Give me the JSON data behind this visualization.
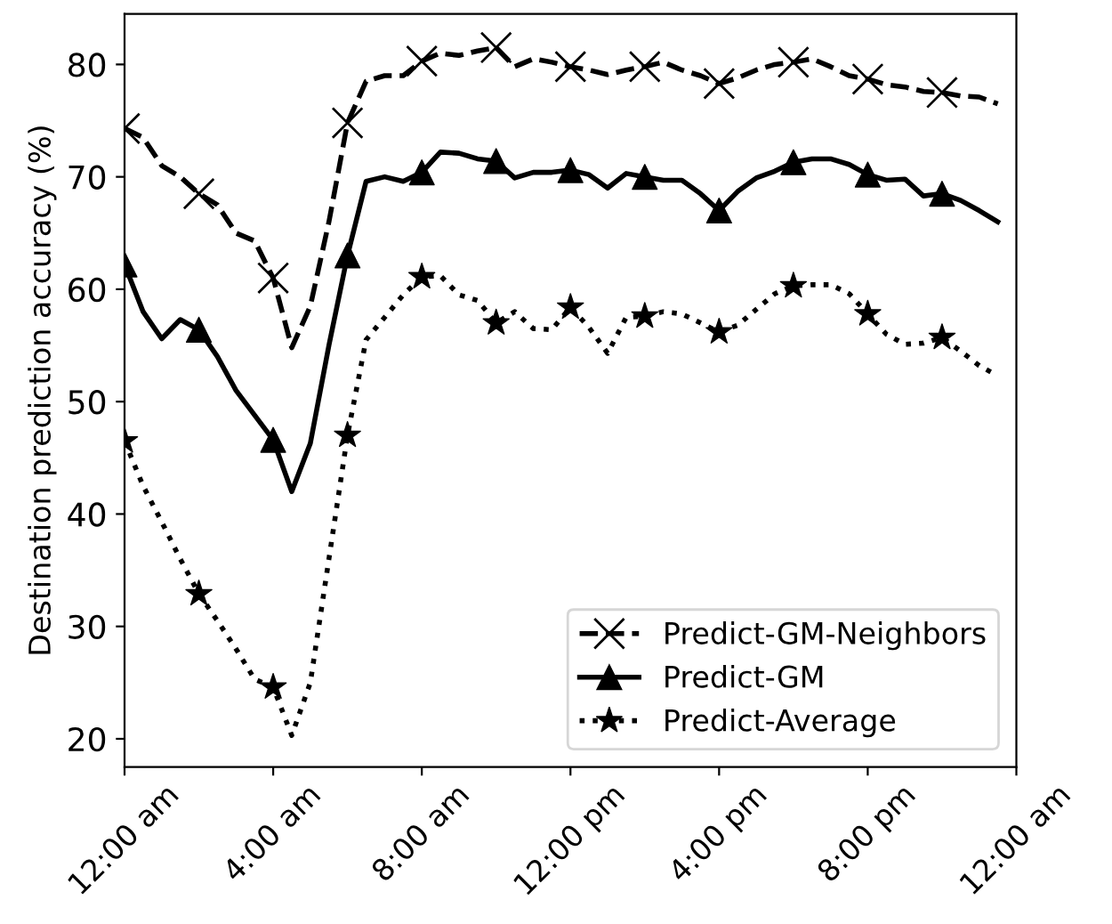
{
  "chart_data": {
    "type": "line",
    "ylabel": "Destination prediction accuracy (%)",
    "x": [
      0,
      0.5,
      1,
      1.5,
      2,
      2.5,
      3,
      3.5,
      4,
      4.5,
      5,
      5.5,
      6,
      6.5,
      7,
      7.5,
      8,
      8.5,
      9,
      9.5,
      10,
      10.5,
      11,
      11.5,
      12,
      12.5,
      13,
      13.5,
      14,
      14.5,
      15,
      15.5,
      16,
      16.5,
      17,
      17.5,
      18,
      18.5,
      19,
      19.5,
      20,
      20.5,
      21,
      21.5,
      22,
      22.5,
      23,
      23.5
    ],
    "xlim": [
      0,
      24
    ],
    "xticks": [
      {
        "value": 0,
        "label": "12:00 am"
      },
      {
        "value": 4,
        "label": "4:00 am"
      },
      {
        "value": 8,
        "label": "8:00 am"
      },
      {
        "value": 12,
        "label": "12:00 pm"
      },
      {
        "value": 16,
        "label": "4:00 pm"
      },
      {
        "value": 20,
        "label": "8:00 pm"
      },
      {
        "value": 24,
        "label": "12:00 am"
      }
    ],
    "ylim": [
      17.5,
      84.5
    ],
    "yticks": [
      20,
      30,
      40,
      50,
      60,
      70,
      80
    ],
    "grid": false,
    "legend": "bottom right",
    "series": [
      {
        "name": "Predict-GM-Neighbors",
        "color": "#000000",
        "marker": "none",
        "line_style": "dashed",
        "values": [
          74.3,
          73.5,
          71,
          70,
          68.5,
          67.5,
          65,
          64.3,
          61,
          54.8,
          58.5,
          66,
          74.8,
          78.5,
          79,
          79,
          80.3,
          81,
          80.8,
          81.2,
          81.5,
          79.8,
          80.5,
          80.2,
          79.8,
          79.5,
          79.1,
          79.5,
          79.8,
          80.2,
          79.5,
          79,
          78.3,
          78.8,
          79.5,
          80,
          80.2,
          80.5,
          79.8,
          79,
          78.7,
          78.2,
          78,
          77.6,
          77.5,
          77.2,
          77.1,
          76.5
        ]
      },
      {
        "type": "scatter",
        "color": "#000000",
        "marker": "cross",
        "x": [
          0,
          2,
          4,
          6,
          8,
          10,
          12,
          14,
          16,
          18,
          20,
          22
        ],
        "values": [
          74.3,
          68.5,
          61,
          74.8,
          80.3,
          81.5,
          79.8,
          79.8,
          78.3,
          80.2,
          78.7,
          77.5
        ]
      },
      {
        "name": "Predict-GM",
        "color": "#000000",
        "marker": "none",
        "line_style": "solid",
        "values": [
          62.2,
          58,
          55.6,
          57.3,
          56.4,
          54,
          51,
          48.8,
          46.6,
          42,
          46.3,
          55,
          63,
          69.6,
          70,
          69.6,
          70.4,
          72.2,
          72.1,
          71.6,
          71.4,
          69.9,
          70.4,
          70.4,
          70.6,
          70.2,
          69,
          70.3,
          70,
          69.7,
          69.7,
          68.5,
          67,
          68.7,
          69.9,
          70.5,
          71.3,
          71.6,
          71.6,
          71.1,
          70.2,
          69.7,
          69.8,
          68.3,
          68.5,
          67.9,
          67,
          66
        ]
      },
      {
        "type": "scatter",
        "color": "#000000",
        "marker": "triangle",
        "x": [
          0,
          2,
          4,
          6,
          8,
          10,
          12,
          14,
          16,
          18,
          20,
          22
        ],
        "values": [
          62.2,
          56.4,
          46.6,
          63,
          70.4,
          71.4,
          70.6,
          70,
          67,
          71.3,
          70.2,
          68.5
        ]
      },
      {
        "name": "Predict-Average",
        "color": "#000000",
        "marker": "none",
        "line_style": "dotted",
        "values": [
          46.5,
          42.5,
          39.3,
          36,
          32.9,
          30.5,
          28,
          25.3,
          24.6,
          20.3,
          25,
          36,
          47,
          55.5,
          57.5,
          59.5,
          61.1,
          61.2,
          59.5,
          59,
          57,
          58,
          56.5,
          56.4,
          58.4,
          56.6,
          54.3,
          57.5,
          57.6,
          58,
          57.8,
          57,
          56.2,
          56.8,
          58.2,
          59.6,
          60.3,
          60.4,
          60.4,
          59.6,
          57.8,
          56,
          55.1,
          55.2,
          55.7,
          54.5,
          53.2,
          52.3
        ]
      },
      {
        "type": "scatter",
        "color": "#000000",
        "marker": "star",
        "x": [
          0,
          2,
          4,
          6,
          8,
          10,
          12,
          14,
          16,
          18,
          20,
          22
        ],
        "values": [
          46.5,
          32.9,
          24.6,
          47,
          61.1,
          57,
          58.4,
          57.6,
          56.2,
          60.3,
          57.8,
          55.7
        ]
      }
    ]
  }
}
